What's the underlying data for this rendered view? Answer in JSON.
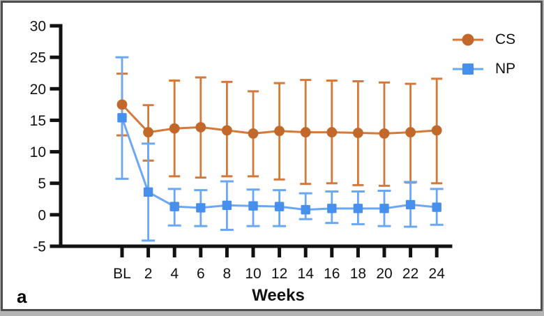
{
  "panel": {
    "label": "a"
  },
  "chart_data": {
    "type": "line",
    "title": "",
    "xlabel": "Weeks",
    "ylabel": "",
    "x_categories": [
      "BL",
      "2",
      "4",
      "6",
      "8",
      "10",
      "12",
      "14",
      "16",
      "18",
      "20",
      "22",
      "24"
    ],
    "yticks": [
      30,
      25,
      20,
      15,
      10,
      5,
      0,
      -5
    ],
    "ylim": [
      -5,
      30
    ],
    "grid": false,
    "error_bars": true,
    "legend_position": "top-right",
    "axis_color": "#111111",
    "series": [
      {
        "name": "CS",
        "marker": "circle",
        "marker_color": "#C2682A",
        "line_color": "#D4793A",
        "values": [
          17.5,
          13.1,
          13.7,
          13.9,
          13.4,
          12.9,
          13.3,
          13.1,
          13.1,
          13.0,
          12.9,
          13.1,
          13.4
        ],
        "upper": [
          22.4,
          17.4,
          21.3,
          21.8,
          21.1,
          19.6,
          20.9,
          21.4,
          21.3,
          21.2,
          21.0,
          20.8,
          21.6
        ],
        "lower": [
          12.6,
          8.6,
          6.1,
          5.9,
          6.1,
          6.1,
          5.6,
          4.9,
          5.0,
          4.7,
          4.6,
          5.1,
          5.0
        ]
      },
      {
        "name": "NP",
        "marker": "square",
        "marker_color": "#468FEC",
        "line_color": "#6AA7F4",
        "values": [
          15.4,
          3.6,
          1.3,
          1.1,
          1.5,
          1.4,
          1.3,
          0.8,
          1.0,
          1.0,
          1.0,
          1.6,
          1.2
        ],
        "upper": [
          25.0,
          11.3,
          4.1,
          3.9,
          5.3,
          4.0,
          3.9,
          3.4,
          3.7,
          3.7,
          3.8,
          5.2,
          4.1
        ],
        "lower": [
          5.7,
          -4.1,
          -1.7,
          -1.8,
          -2.4,
          -1.8,
          -1.8,
          -0.7,
          -1.3,
          -1.5,
          -1.8,
          -1.9,
          -1.6
        ]
      }
    ]
  }
}
